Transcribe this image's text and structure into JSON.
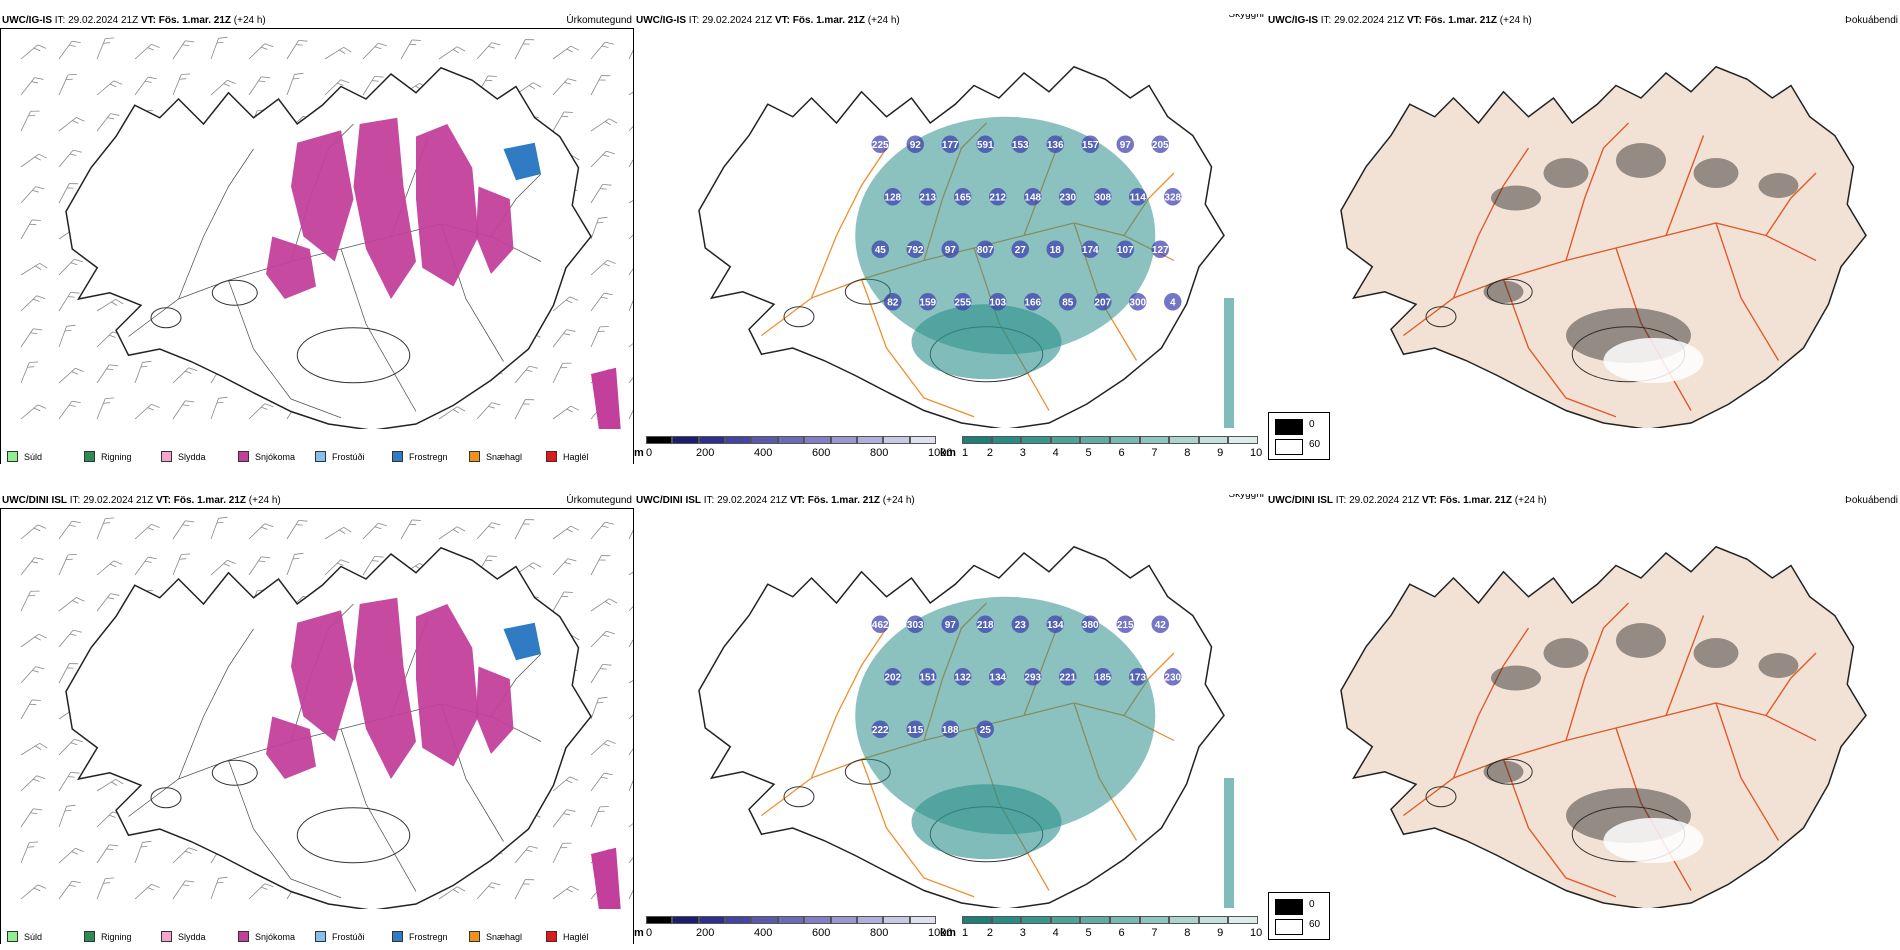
{
  "colors": {
    "snow": "#c2409b",
    "frost": "#2f7bc4",
    "visibility_teal": "#2b8f8a",
    "elevation_blue": "#3b3bae",
    "land_tint": "#f2e2d6",
    "roads": "#f08b2a"
  },
  "rows": [
    {
      "precip": {
        "model": "UWC/IG-IS",
        "it_label": "IT:",
        "it_value": "29.02.2024 21Z",
        "vt_label": "VT:",
        "vt_value": "Fös. 1.mar. 21Z",
        "lead": "(+24 h)",
        "title": "Úrkomutegund"
      },
      "visibility": {
        "model": "UWC/IG-IS",
        "it_label": "IT:",
        "it_value": "29.02.2024 21Z",
        "vt_label": "VT:",
        "vt_value": "Fös. 1.mar. 21Z",
        "lead": "(+24 h)",
        "title": "Skyggni",
        "labels": [
          "225",
          "92",
          "177",
          "591",
          "153",
          "136",
          "157",
          "97",
          "205",
          "128",
          "213",
          "165",
          "212",
          "148",
          "230",
          "308",
          "114",
          "328",
          "45",
          "792",
          "97",
          "807",
          "27",
          "18",
          "174",
          "107",
          "127",
          "82",
          "159",
          "255",
          "103",
          "166",
          "85",
          "207",
          "300",
          "4"
        ]
      },
      "fog": {
        "model": "UWC/IG-IS",
        "it_label": "IT:",
        "it_value": "29.02.2024 21Z",
        "vt_label": "VT:",
        "vt_value": "Fös. 1.mar. 21Z",
        "lead": "(+24 h)",
        "title": "Þokuábendi"
      }
    },
    {
      "precip": {
        "model": "UWC/DINI ISL",
        "it_label": "IT:",
        "it_value": "29.02.2024 21Z",
        "vt_label": "VT:",
        "vt_value": "Fös. 1.mar. 21Z",
        "lead": "(+24 h)",
        "title": "Úrkomutegund"
      },
      "visibility": {
        "model": "UWC/DINI ISL",
        "it_label": "IT:",
        "it_value": "29.02.2024 21Z",
        "vt_label": "VT:",
        "vt_value": "Fös. 1.mar. 21Z",
        "lead": "(+24 h)",
        "title": "Skyggni",
        "labels": [
          "462",
          "303",
          "97",
          "218",
          "23",
          "134",
          "380",
          "215",
          "42",
          "202",
          "151",
          "132",
          "134",
          "293",
          "221",
          "185",
          "173",
          "230",
          "222",
          "115",
          "188",
          "25"
        ]
      },
      "fog": {
        "model": "UWC/DINI ISL",
        "it_label": "IT:",
        "it_value": "29.02.2024 21Z",
        "vt_label": "VT:",
        "vt_value": "Fös. 1.mar. 21Z",
        "lead": "(+24 h)",
        "title": "Þokuábendi"
      }
    }
  ],
  "precip_legend": [
    {
      "label": "Súld",
      "color": "#90ee90"
    },
    {
      "label": "Rigning",
      "color": "#2e8b57"
    },
    {
      "label": "Slydda",
      "color": "#f4a6d0"
    },
    {
      "label": "Snjókoma",
      "color": "#c2409b"
    },
    {
      "label": "Frostúði",
      "color": "#87bfef"
    },
    {
      "label": "Frostregn",
      "color": "#2f7bc4"
    },
    {
      "label": "Snæhagl",
      "color": "#f0921e"
    },
    {
      "label": "Haglél",
      "color": "#e0191b"
    }
  ],
  "elevation_bar": {
    "unit": "m",
    "ticks": [
      "0",
      "200",
      "400",
      "600",
      "800",
      "1000"
    ],
    "colors": [
      "#000000",
      "#1c1c6e",
      "#2e2e8e",
      "#4444a2",
      "#5858ad",
      "#6b6bb8",
      "#8080c4",
      "#9898d2",
      "#b0b0de",
      "#c8c8e8",
      "#e0e0f3"
    ]
  },
  "visibility_bar": {
    "unit": "km",
    "ticks": [
      "1",
      "2",
      "3",
      "4",
      "5",
      "6",
      "7",
      "8",
      "9",
      "10"
    ],
    "colors": [
      "#1f7d77",
      "#2b8a84",
      "#3a958f",
      "#4da19b",
      "#62aca7",
      "#78b9b4",
      "#90c6c2",
      "#a9d4d0",
      "#c2e1de",
      "#dbeeec"
    ]
  },
  "fog_legend": [
    {
      "label": "0",
      "color": "#000000"
    },
    {
      "label": "60",
      "color": "#ffffff"
    }
  ]
}
